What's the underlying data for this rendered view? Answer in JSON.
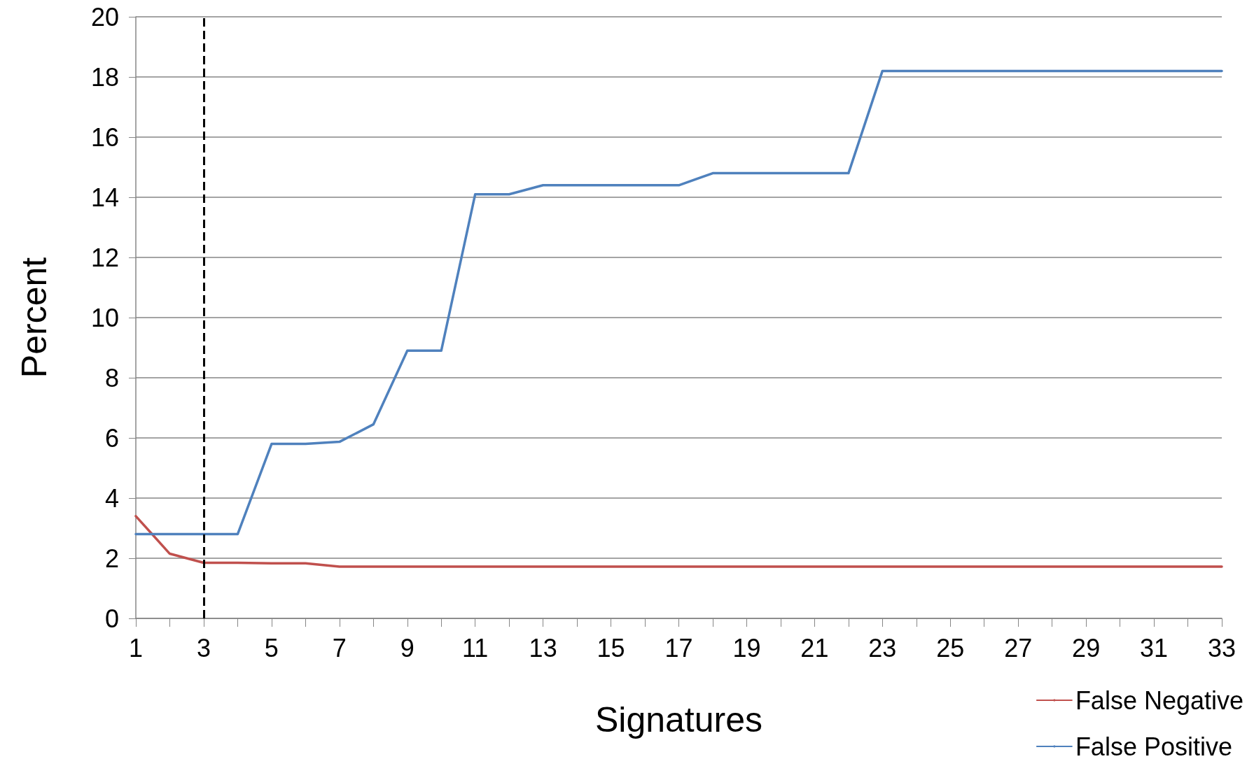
{
  "chart_data": {
    "type": "line",
    "xlabel": "Signatures",
    "ylabel": "Percent",
    "x": [
      1,
      2,
      3,
      4,
      5,
      6,
      7,
      8,
      9,
      10,
      11,
      12,
      13,
      14,
      15,
      16,
      17,
      18,
      19,
      20,
      21,
      22,
      23,
      24,
      25,
      26,
      27,
      28,
      29,
      30,
      31,
      32,
      33
    ],
    "series": [
      {
        "name": "False Negative",
        "color": "#c0504d",
        "values": [
          3.4,
          2.15,
          1.85,
          1.85,
          1.83,
          1.83,
          1.72,
          1.72,
          1.72,
          1.72,
          1.72,
          1.72,
          1.72,
          1.72,
          1.72,
          1.72,
          1.72,
          1.72,
          1.72,
          1.72,
          1.72,
          1.72,
          1.72,
          1.72,
          1.72,
          1.72,
          1.72,
          1.72,
          1.72,
          1.72,
          1.72,
          1.72,
          1.72
        ]
      },
      {
        "name": "False Positive",
        "color": "#4f81bd",
        "values": [
          2.8,
          2.8,
          2.8,
          2.8,
          5.8,
          5.8,
          5.87,
          6.45,
          8.9,
          8.9,
          14.1,
          14.1,
          14.4,
          14.4,
          14.4,
          14.4,
          14.4,
          14.8,
          14.8,
          14.8,
          14.8,
          14.8,
          18.2,
          18.2,
          18.2,
          18.2,
          18.2,
          18.2,
          18.2,
          18.2,
          18.2,
          18.2,
          18.2
        ]
      }
    ],
    "xlim": [
      1,
      33
    ],
    "xticks": [
      1,
      {
        "value": 2,
        "label": null
      },
      3,
      {
        "value": 4,
        "label": null
      },
      5,
      {
        "value": 6,
        "label": null
      },
      7,
      {
        "value": 8,
        "label": null
      },
      9,
      {
        "value": 10,
        "label": null
      },
      11,
      {
        "value": 12,
        "label": null
      },
      13,
      {
        "value": 14,
        "label": null
      },
      15,
      {
        "value": 16,
        "label": null
      },
      17,
      {
        "value": 18,
        "label": null
      },
      19,
      {
        "value": 20,
        "label": null
      },
      21,
      {
        "value": 22,
        "label": null
      },
      23,
      {
        "value": 24,
        "label": null
      },
      25,
      {
        "value": 26,
        "label": null
      },
      27,
      {
        "value": 28,
        "label": null
      },
      29,
      {
        "value": 30,
        "label": null
      },
      31,
      {
        "value": 32,
        "label": null
      },
      33
    ],
    "ylim": [
      0,
      20
    ],
    "yticks": [
      0,
      2,
      4,
      6,
      8,
      10,
      12,
      14,
      16,
      18,
      20
    ],
    "ref_lines": [
      {
        "axis": "x",
        "value": 3,
        "label": null,
        "color": "#000000",
        "line_style": "dashed"
      }
    ],
    "grid": "y",
    "legend": "bottom right",
    "marker": "none",
    "line_style": "solid"
  }
}
